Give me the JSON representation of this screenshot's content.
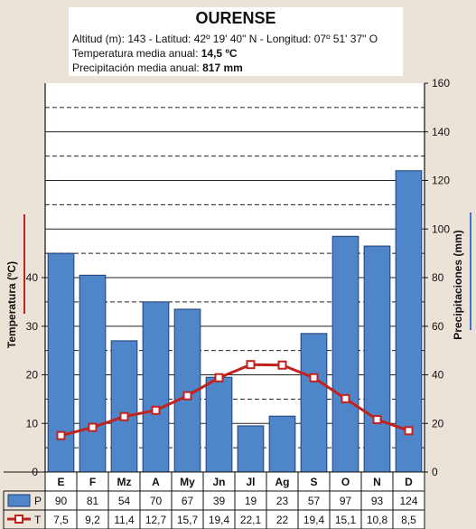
{
  "header": {
    "title": "OURENSE",
    "line1": "Altitud (m): 143 - Latitud: 42º 19' 40\" N - Longitud: 07º 51' 37\" O",
    "temp_label": "Temperatura media anual: ",
    "temp_value": "14,5 ºC",
    "precip_label": "Precipitación media anual: ",
    "precip_value": "817 mm"
  },
  "chart_data": {
    "type": "bar",
    "categories": [
      "E",
      "F",
      "Mz",
      "A",
      "My",
      "Jn",
      "Jl",
      "Ag",
      "S",
      "O",
      "N",
      "D"
    ],
    "series": [
      {
        "name": "P",
        "type": "bar",
        "axis": "right",
        "values": [
          90,
          81,
          54,
          70,
          67,
          39,
          19,
          23,
          57,
          97,
          93,
          124
        ],
        "labels": [
          "90",
          "81",
          "54",
          "70",
          "67",
          "39",
          "19",
          "23",
          "57",
          "97",
          "93",
          "124"
        ]
      },
      {
        "name": "T",
        "type": "line",
        "axis": "left",
        "values": [
          7.5,
          9.2,
          11.4,
          12.7,
          15.7,
          19.4,
          22.1,
          22,
          19.4,
          15.1,
          10.8,
          8.5
        ],
        "labels": [
          "7,5",
          "9,2",
          "11,4",
          "12,7",
          "15,7",
          "19,4",
          "22,1",
          "22",
          "19,4",
          "15,1",
          "10,8",
          "8,5"
        ]
      }
    ],
    "ylabel_left": "Temperatura (ºC)",
    "ylabel_right": "Precipitaciones (mm)",
    "ylim_left": [
      0,
      80
    ],
    "ylim_right": [
      0,
      160
    ],
    "yticks_left": [
      0,
      10,
      20,
      30,
      40
    ],
    "yticks_right": [
      0,
      20,
      40,
      60,
      80,
      100,
      120,
      140,
      160
    ],
    "grid": true,
    "colors": {
      "bar": "#4f86c9",
      "bar_edge": "#1f3f78",
      "line": "#c0221e",
      "marker_fill": "#ffffff",
      "left_axis_accent": "#c0221e",
      "right_axis_accent": "#3a78c8"
    }
  }
}
